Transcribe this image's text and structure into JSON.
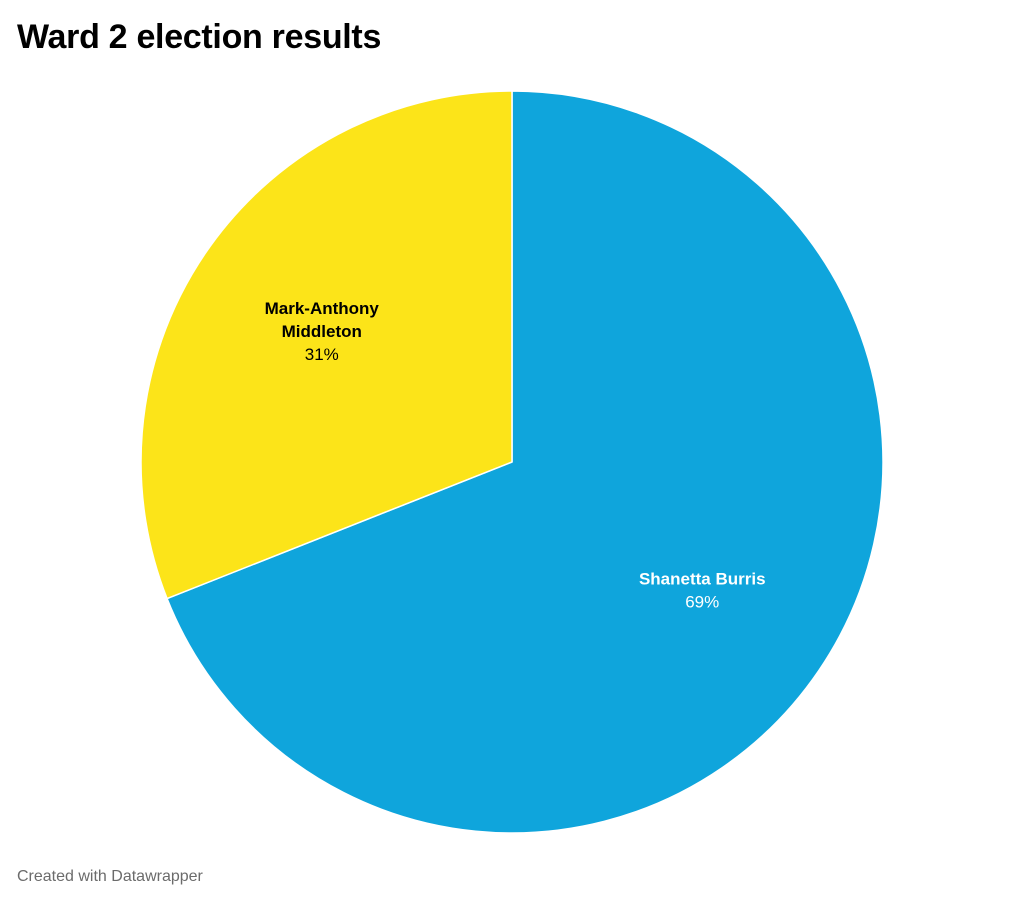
{
  "title": "Ward 2 election results",
  "footer": {
    "credit": "Created with Datawrapper"
  },
  "chart_data": {
    "type": "pie",
    "title": "Ward 2 election results",
    "slices": [
      {
        "label": "Shanetta Burris",
        "label_lines": [
          "Shanetta Burris"
        ],
        "value": 69,
        "value_label": "69%",
        "color": "#0fa5dc",
        "text_color": "#ffffff"
      },
      {
        "label": "Mark-Anthony Middleton",
        "label_lines": [
          "Mark-Anthony",
          "Middleton"
        ],
        "value": 31,
        "value_label": "31%",
        "color": "#fce419",
        "text_color": "#000000"
      }
    ],
    "start": "12 o'clock",
    "direction": "clockwise",
    "slice_border_color": "#ffffff"
  }
}
